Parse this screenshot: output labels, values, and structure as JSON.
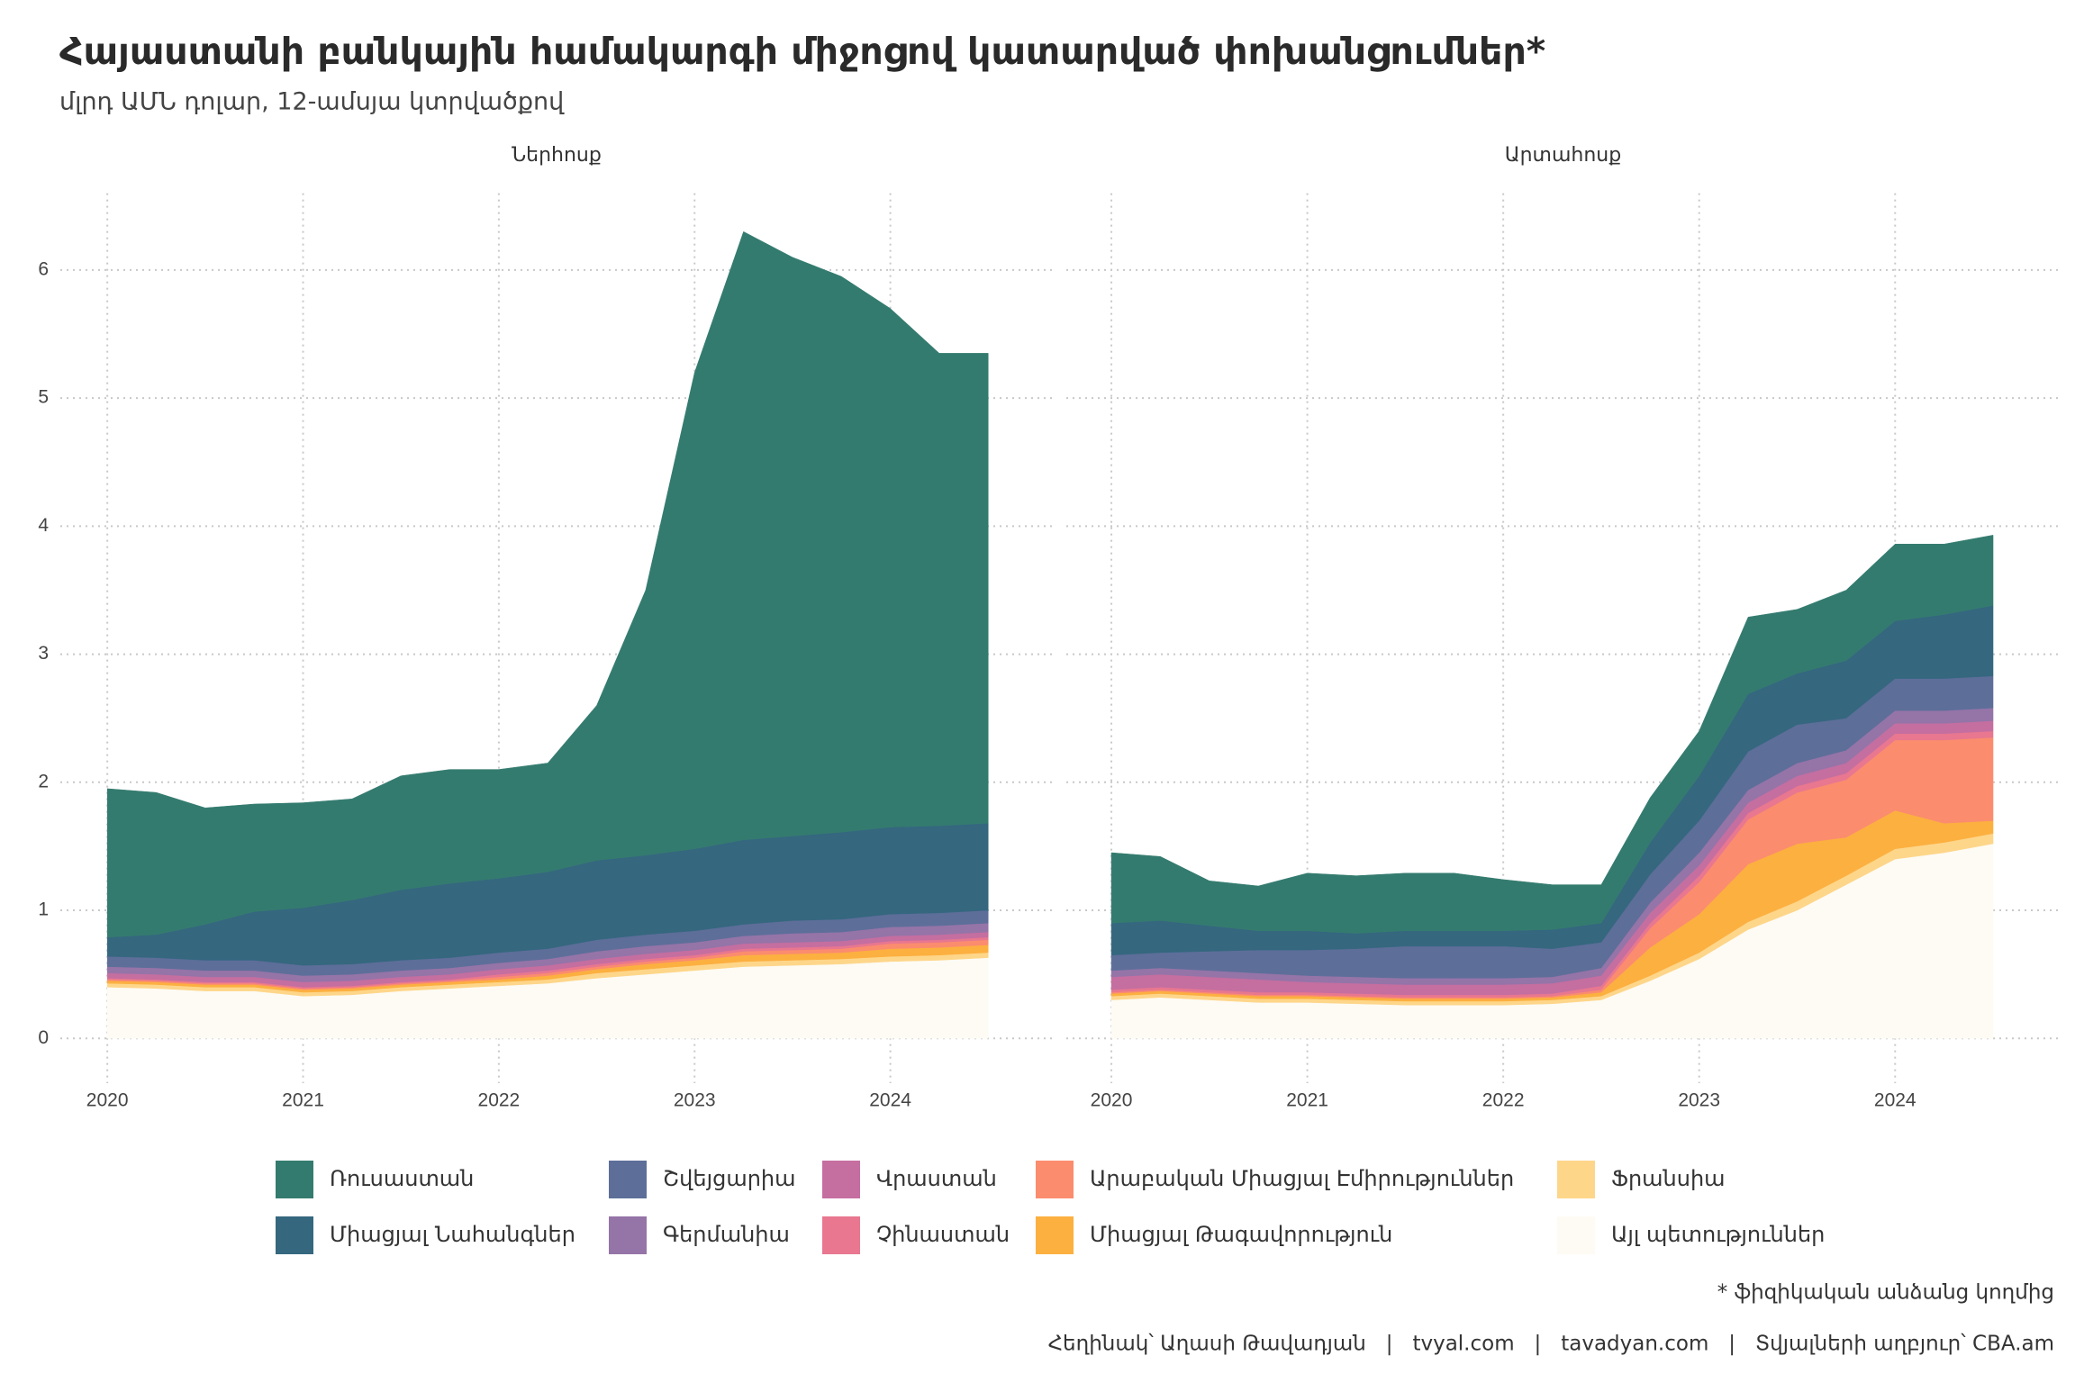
{
  "title": "Հայաստանի բանկային համակարգի միջոցով կատարված փոխանցումներ*",
  "subtitle": "մլրդ ԱՄՆ դոլար, 12-ամսյա կտրվածքով",
  "footnote": "* ֆիզիկական անձանց կողմից",
  "credits": "Հեղինակ՝ Աղասի Թավադյան   |   tvyal.com   |   tavadyan.com   |   Տվյալների աղբյուր՝ CBA.am",
  "chart_data": [
    {
      "type": "stacked_area",
      "title": "Ներհոսք",
      "x": [
        2020,
        2020.25,
        2020.5,
        2020.75,
        2021,
        2021.25,
        2021.5,
        2021.75,
        2022,
        2022.25,
        2022.5,
        2022.75,
        2023,
        2023.25,
        2023.5,
        2023.75,
        2024,
        2024.25,
        2024.5
      ],
      "xlim": [
        2019.76,
        2024.83
      ],
      "xticks": [
        2020,
        2021,
        2022,
        2023,
        2024
      ],
      "ylim": [
        -0.35,
        6.6
      ],
      "yticks": [
        0,
        1,
        2,
        3,
        4,
        5,
        6
      ],
      "grid": true,
      "series": [
        {
          "name": "Ռուսաստան",
          "color": "#347b6f",
          "values": [
            1.16,
            1.11,
            0.91,
            0.84,
            0.82,
            0.79,
            0.89,
            0.89,
            0.85,
            0.85,
            1.21,
            2.07,
            3.72,
            4.75,
            4.52,
            4.34,
            4.05,
            3.69,
            3.67
          ]
        },
        {
          "name": "Միացյալ Նահանգներ",
          "color": "#35677f",
          "values": [
            0.15,
            0.18,
            0.28,
            0.38,
            0.45,
            0.5,
            0.55,
            0.58,
            0.58,
            0.6,
            0.62,
            0.62,
            0.64,
            0.66,
            0.66,
            0.68,
            0.68,
            0.68,
            0.68
          ]
        },
        {
          "name": "Շվեյցարիա",
          "color": "#5d6e99",
          "values": [
            0.08,
            0.08,
            0.08,
            0.08,
            0.08,
            0.08,
            0.08,
            0.08,
            0.08,
            0.08,
            0.09,
            0.09,
            0.09,
            0.09,
            0.1,
            0.1,
            0.1,
            0.1,
            0.1
          ]
        },
        {
          "name": "Գերմանիա",
          "color": "#9574a8",
          "values": [
            0.05,
            0.05,
            0.05,
            0.05,
            0.05,
            0.05,
            0.05,
            0.05,
            0.05,
            0.05,
            0.06,
            0.06,
            0.06,
            0.06,
            0.07,
            0.07,
            0.07,
            0.07,
            0.07
          ]
        },
        {
          "name": "Վրաստան",
          "color": "#c56ea0",
          "values": [
            0.04,
            0.04,
            0.04,
            0.04,
            0.04,
            0.04,
            0.04,
            0.04,
            0.04,
            0.04,
            0.04,
            0.04,
            0.04,
            0.04,
            0.04,
            0.04,
            0.04,
            0.04,
            0.04
          ]
        },
        {
          "name": "Չինաստան",
          "color": "#e8778f",
          "values": [
            0.01,
            0.01,
            0.01,
            0.01,
            0.01,
            0.01,
            0.01,
            0.01,
            0.02,
            0.02,
            0.02,
            0.02,
            0.02,
            0.02,
            0.02,
            0.02,
            0.02,
            0.02,
            0.02
          ]
        },
        {
          "name": "Արաբական Միացյալ Էմիրություններ",
          "color": "#fb8c6e",
          "values": [
            0.01,
            0.01,
            0.01,
            0.01,
            0.01,
            0.01,
            0.01,
            0.01,
            0.02,
            0.02,
            0.02,
            0.02,
            0.02,
            0.03,
            0.03,
            0.03,
            0.04,
            0.04,
            0.04
          ]
        },
        {
          "name": "Միացյալ Թագավորություն",
          "color": "#fcb040",
          "values": [
            0.02,
            0.02,
            0.02,
            0.02,
            0.02,
            0.02,
            0.02,
            0.02,
            0.02,
            0.03,
            0.03,
            0.04,
            0.04,
            0.05,
            0.05,
            0.05,
            0.06,
            0.06,
            0.06
          ]
        },
        {
          "name": "Ֆրանսիա",
          "color": "#fed68a",
          "values": [
            0.03,
            0.03,
            0.03,
            0.03,
            0.03,
            0.03,
            0.03,
            0.03,
            0.03,
            0.03,
            0.04,
            0.04,
            0.04,
            0.04,
            0.04,
            0.04,
            0.04,
            0.04,
            0.04
          ]
        },
        {
          "name": "Այլ պետություններ",
          "color": "#fdfbf4",
          "values": [
            0.4,
            0.39,
            0.37,
            0.37,
            0.33,
            0.34,
            0.37,
            0.39,
            0.41,
            0.43,
            0.47,
            0.5,
            0.53,
            0.56,
            0.57,
            0.58,
            0.6,
            0.61,
            0.63
          ]
        }
      ]
    },
    {
      "type": "stacked_area",
      "title": "Արտահոսք",
      "x": [
        2020,
        2020.25,
        2020.5,
        2020.75,
        2021,
        2021.25,
        2021.5,
        2021.75,
        2022,
        2022.25,
        2022.5,
        2022.75,
        2023,
        2023.25,
        2023.5,
        2023.75,
        2024,
        2024.25,
        2024.5
      ],
      "xlim": [
        2019.77,
        2024.84
      ],
      "xticks": [
        2020,
        2021,
        2022,
        2023,
        2024
      ],
      "ylim": [
        -0.35,
        6.6
      ],
      "yticks": [
        0,
        1,
        2,
        3,
        4,
        5,
        6
      ],
      "grid": true,
      "series": [
        {
          "values": [
            0.55,
            0.5,
            0.35,
            0.35,
            0.45,
            0.45,
            0.45,
            0.45,
            0.4,
            0.35,
            0.3,
            0.35,
            0.35,
            0.6,
            0.5,
            0.55,
            0.6,
            0.55,
            0.55
          ]
        },
        {
          "values": [
            0.25,
            0.25,
            0.2,
            0.15,
            0.15,
            0.12,
            0.12,
            0.12,
            0.12,
            0.15,
            0.15,
            0.25,
            0.35,
            0.45,
            0.4,
            0.45,
            0.45,
            0.5,
            0.55
          ]
        },
        {
          "values": [
            0.12,
            0.12,
            0.15,
            0.18,
            0.2,
            0.22,
            0.25,
            0.25,
            0.25,
            0.22,
            0.2,
            0.22,
            0.25,
            0.3,
            0.3,
            0.25,
            0.25,
            0.25,
            0.25
          ]
        },
        {
          "values": [
            0.05,
            0.05,
            0.05,
            0.05,
            0.05,
            0.05,
            0.05,
            0.05,
            0.05,
            0.05,
            0.06,
            0.08,
            0.1,
            0.1,
            0.1,
            0.1,
            0.1,
            0.1,
            0.1
          ]
        },
        {
          "values": [
            0.1,
            0.1,
            0.1,
            0.1,
            0.08,
            0.08,
            0.08,
            0.08,
            0.08,
            0.08,
            0.08,
            0.08,
            0.08,
            0.08,
            0.08,
            0.08,
            0.08,
            0.08,
            0.08
          ]
        },
        {
          "values": [
            0.02,
            0.02,
            0.02,
            0.02,
            0.02,
            0.02,
            0.02,
            0.02,
            0.02,
            0.02,
            0.03,
            0.04,
            0.05,
            0.05,
            0.05,
            0.05,
            0.05,
            0.05,
            0.05
          ]
        },
        {
          "values": [
            0.01,
            0.01,
            0.01,
            0.01,
            0.01,
            0.01,
            0.01,
            0.01,
            0.01,
            0.01,
            0.02,
            0.15,
            0.25,
            0.35,
            0.4,
            0.45,
            0.55,
            0.65,
            0.65
          ]
        },
        {
          "values": [
            0.02,
            0.02,
            0.02,
            0.02,
            0.02,
            0.02,
            0.02,
            0.02,
            0.02,
            0.02,
            0.03,
            0.22,
            0.3,
            0.45,
            0.45,
            0.3,
            0.3,
            0.15,
            0.1
          ]
        },
        {
          "values": [
            0.03,
            0.03,
            0.03,
            0.03,
            0.03,
            0.03,
            0.03,
            0.03,
            0.03,
            0.03,
            0.03,
            0.04,
            0.05,
            0.06,
            0.07,
            0.07,
            0.08,
            0.08,
            0.08
          ]
        },
        {
          "values": [
            0.3,
            0.32,
            0.3,
            0.28,
            0.28,
            0.27,
            0.26,
            0.26,
            0.26,
            0.27,
            0.3,
            0.45,
            0.62,
            0.85,
            1,
            1.2,
            1.4,
            1.45,
            1.52
          ]
        }
      ]
    }
  ]
}
